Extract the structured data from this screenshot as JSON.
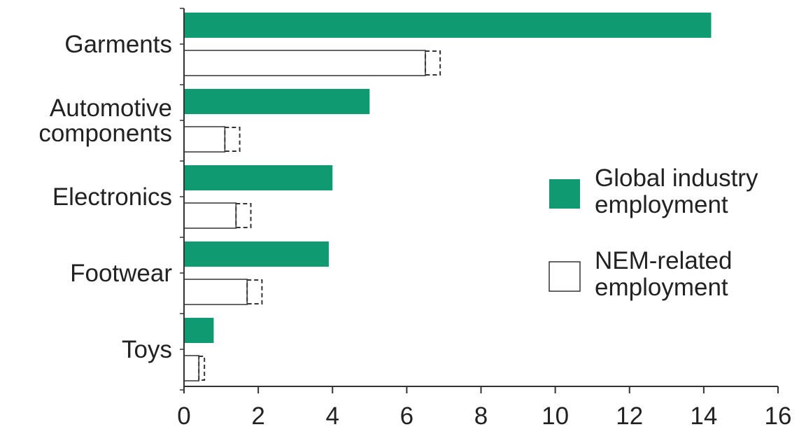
{
  "chart_data": {
    "type": "bar",
    "orientation": "horizontal",
    "categories": [
      "Garments",
      "Automotive components",
      "Electronics",
      "Footwear",
      "Toys"
    ],
    "category_label_lines": [
      [
        "Garments"
      ],
      [
        "Automotive",
        "components"
      ],
      [
        "Electronics"
      ],
      [
        "Footwear"
      ],
      [
        "Toys"
      ]
    ],
    "series": [
      {
        "name": "Global industry employment",
        "values": [
          14.2,
          5.0,
          4.0,
          3.9,
          0.8
        ],
        "color": "#0f9a72"
      },
      {
        "name": "NEM-related employment",
        "values": [
          6.5,
          1.1,
          1.4,
          1.7,
          0.4
        ],
        "range_high": [
          6.9,
          1.5,
          1.8,
          2.1,
          0.55
        ],
        "color": "#ffffff"
      }
    ],
    "legend": {
      "position": "right",
      "items": [
        {
          "lines": [
            "Global industry",
            "employment"
          ]
        },
        {
          "lines": [
            "NEM-related",
            "employment"
          ]
        }
      ]
    },
    "xlim": [
      0,
      16
    ],
    "xticks": [
      "0",
      "2",
      "4",
      "6",
      "8",
      "10",
      "12",
      "14",
      "16"
    ],
    "title": "",
    "xlabel": "",
    "ylabel": "",
    "grid": false
  }
}
